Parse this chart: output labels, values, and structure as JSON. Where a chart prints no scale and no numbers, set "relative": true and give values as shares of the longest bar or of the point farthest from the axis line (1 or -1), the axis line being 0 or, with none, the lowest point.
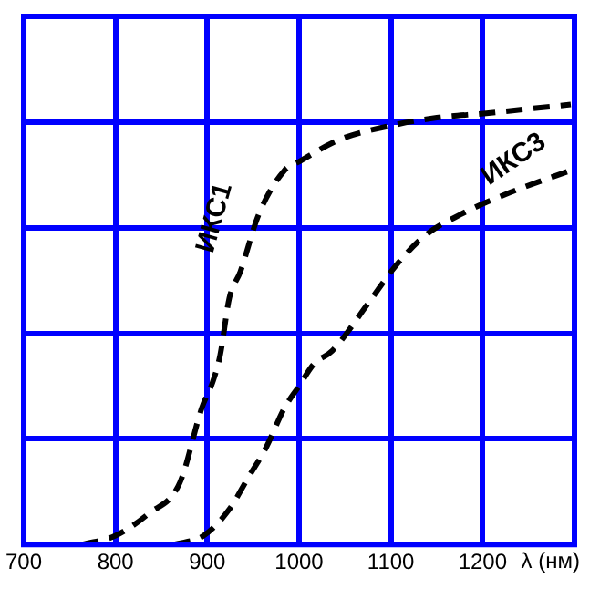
{
  "chart_data": {
    "type": "line",
    "xlabel": "λ (нм)",
    "relative": true,
    "xlim": [
      700,
      1300
    ],
    "xticks": [
      700,
      800,
      900,
      1000,
      1100,
      1200,
      {
        "value": 1300,
        "label": null
      }
    ],
    "grid": true,
    "legend": false,
    "marker": "none",
    "line_style": "dashed",
    "series": [
      {
        "name": "ИКС1",
        "color": "#000000",
        "x": [
          764,
          800,
          836,
          870,
          894,
          906,
          914,
          924,
          936,
          956,
          984,
          1000,
          1044,
          1096,
          1150,
          1204,
          1250,
          1296
        ],
        "values": [
          0,
          0.02,
          0.07,
          0.14,
          0.31,
          0.37,
          0.43,
          0.56,
          0.62,
          0.75,
          0.85,
          0.87,
          0.92,
          0.95,
          0.97,
          0.98,
          0.99,
          1
        ]
      },
      {
        "name": "ИКС3",
        "color": "#000000",
        "x": [
          864,
          896,
          924,
          944,
          964,
          984,
          1000,
          1016,
          1036,
          1076,
          1104,
          1136,
          1176,
          1230,
          1296
        ],
        "values": [
          0,
          0.02,
          0.08,
          0.15,
          0.22,
          0.31,
          0.36,
          0.41,
          0.44,
          0.55,
          0.63,
          0.7,
          0.75,
          0.8,
          0.85
        ]
      }
    ]
  }
}
